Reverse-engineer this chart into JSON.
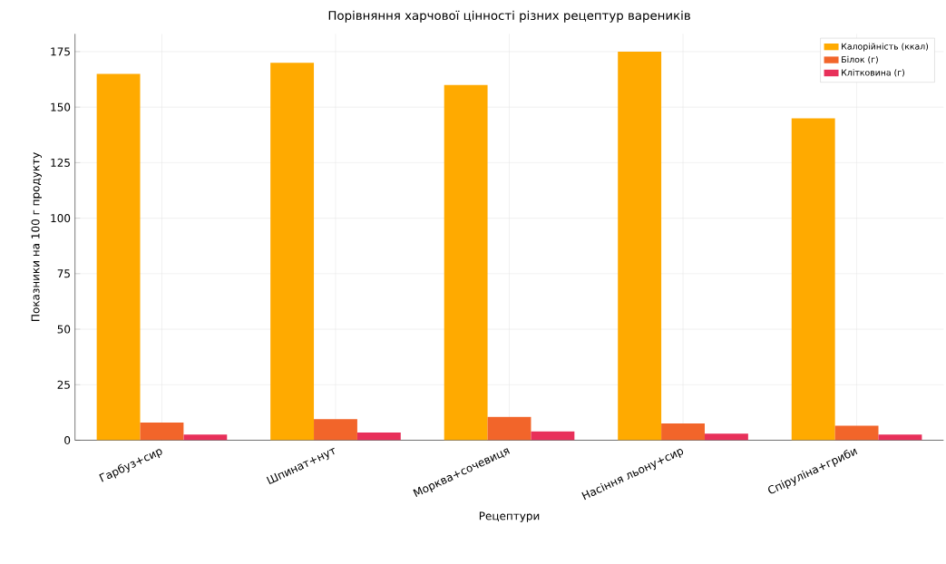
{
  "chart_data": {
    "type": "bar",
    "title": "Порівняння харчової цінності різних рецептур вареників",
    "xlabel": "Рецептури",
    "ylabel": "Показники на 100 г продукту",
    "categories": [
      "Гарбуз+сир",
      "Шпинат+нут",
      "Морква+сочевиця",
      "Насіння льону+сир",
      "Спіруліна+гриби"
    ],
    "series": [
      {
        "name": "Калорійність (ккал)",
        "color": "#ffaa00",
        "values": [
          165,
          170,
          160,
          175,
          145
        ]
      },
      {
        "name": "Білок (г)",
        "color": "#f2652a",
        "values": [
          8,
          9.5,
          10.5,
          7.5,
          6.5
        ]
      },
      {
        "name": "Клітковина (г)",
        "color": "#e8305a",
        "values": [
          2.5,
          3.5,
          4,
          3,
          2.5
        ]
      }
    ],
    "ylim": [
      0,
      183
    ],
    "yticks": [
      0,
      25,
      50,
      75,
      100,
      125,
      150,
      175
    ],
    "grid": true,
    "legend": "top right"
  }
}
